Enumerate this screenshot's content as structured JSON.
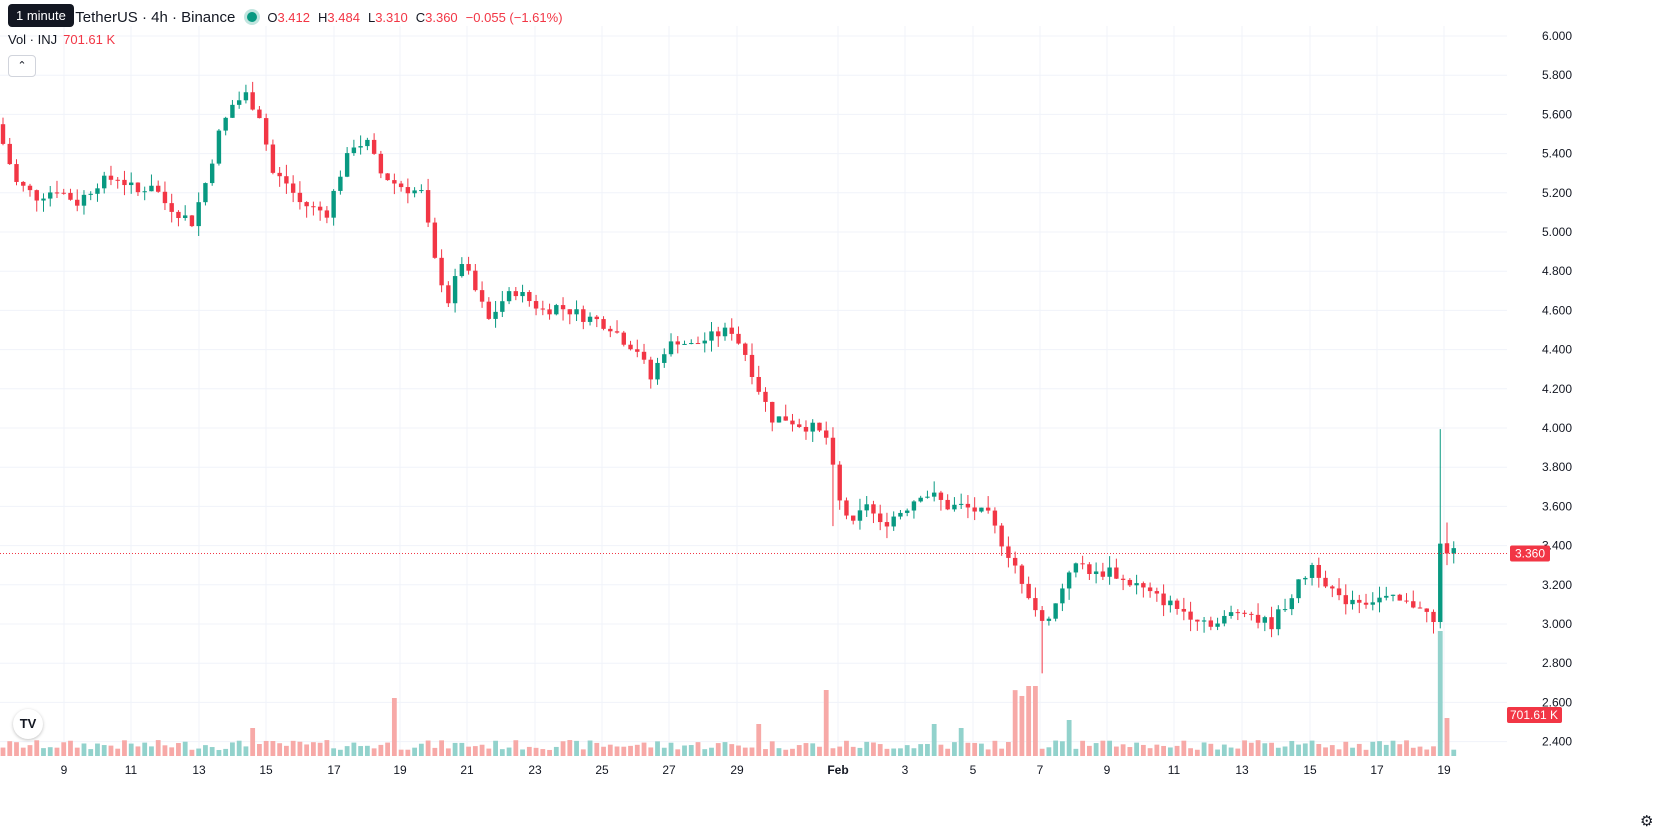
{
  "legend": {
    "symbol": "Injective / TetherUS · 4h · Binance",
    "o_label": "O",
    "o": "3.412",
    "h_label": "H",
    "h": "3.484",
    "l_label": "L",
    "l": "3.310",
    "c_label": "C",
    "c": "3.360",
    "change": "−0.055 (−1.61%)"
  },
  "tooltip": "1 minute",
  "volume_legend": {
    "label": "Vol · INJ",
    "value": "701.61 K"
  },
  "logo_text": "TV",
  "colors": {
    "up": "#089981",
    "down": "#f23645",
    "up_vol": "#92d2cc",
    "down_vol": "#f7a9a7",
    "grid": "#f0f3fa"
  },
  "chart_data": {
    "type": "candlestick",
    "interval": "4h",
    "x_tick_labels": [
      "9",
      "11",
      "13",
      "15",
      "17",
      "19",
      "21",
      "23",
      "25",
      "27",
      "29",
      "Feb",
      "3",
      "5",
      "7",
      "9",
      "11",
      "13",
      "15",
      "17",
      "19"
    ],
    "y_tick_labels": [
      "6.000",
      "5.800",
      "5.600",
      "5.400",
      "5.200",
      "5.000",
      "4.800",
      "4.600",
      "4.400",
      "4.200",
      "4.000",
      "3.800",
      "3.600",
      "3.400",
      "3.200",
      "3.000",
      "2.800",
      "2.600",
      "2.400"
    ],
    "ylim": [
      2.3,
      6.05
    ],
    "last_price": "3.360",
    "last_volume": "701.61 K",
    "grid": true,
    "price_path": [
      [
        0,
        5.55
      ],
      [
        3,
        5.25
      ],
      [
        6,
        5.18
      ],
      [
        9,
        5.22
      ],
      [
        12,
        5.15
      ],
      [
        15,
        5.25
      ],
      [
        18,
        5.28
      ],
      [
        21,
        5.2
      ],
      [
        23,
        5.25
      ],
      [
        25,
        5.15
      ],
      [
        27,
        5.1
      ],
      [
        29,
        5.05
      ],
      [
        31,
        5.25
      ],
      [
        33,
        5.5
      ],
      [
        35,
        5.65
      ],
      [
        37,
        5.7
      ],
      [
        39,
        5.6
      ],
      [
        41,
        5.3
      ],
      [
        43,
        5.25
      ],
      [
        45,
        5.15
      ],
      [
        47,
        5.12
      ],
      [
        49,
        5.1
      ],
      [
        51,
        5.3
      ],
      [
        53,
        5.45
      ],
      [
        55,
        5.45
      ],
      [
        57,
        5.3
      ],
      [
        59,
        5.25
      ],
      [
        61,
        5.22
      ],
      [
        63,
        5.2
      ],
      [
        65,
        4.85
      ],
      [
        67,
        4.65
      ],
      [
        69,
        4.85
      ],
      [
        71,
        4.7
      ],
      [
        73,
        4.55
      ],
      [
        75,
        4.65
      ],
      [
        77,
        4.7
      ],
      [
        79,
        4.65
      ],
      [
        81,
        4.6
      ],
      [
        83,
        4.62
      ],
      [
        85,
        4.6
      ],
      [
        87,
        4.57
      ],
      [
        89,
        4.55
      ],
      [
        91,
        4.52
      ],
      [
        93,
        4.45
      ],
      [
        95,
        4.4
      ],
      [
        97,
        4.25
      ],
      [
        99,
        4.4
      ],
      [
        101,
        4.45
      ],
      [
        103,
        4.42
      ],
      [
        105,
        4.45
      ],
      [
        107,
        4.48
      ],
      [
        109,
        4.5
      ],
      [
        111,
        4.38
      ],
      [
        113,
        4.2
      ],
      [
        115,
        4.05
      ],
      [
        117,
        4.05
      ],
      [
        119,
        4.02
      ],
      [
        121,
        4.0
      ],
      [
        123,
        3.95
      ],
      [
        125,
        3.62
      ],
      [
        127,
        3.5
      ],
      [
        129,
        3.62
      ],
      [
        131,
        3.5
      ],
      [
        133,
        3.55
      ],
      [
        135,
        3.6
      ],
      [
        137,
        3.67
      ],
      [
        139,
        3.65
      ],
      [
        141,
        3.6
      ],
      [
        143,
        3.6
      ],
      [
        145,
        3.58
      ],
      [
        147,
        3.55
      ],
      [
        149,
        3.42
      ],
      [
        151,
        3.3
      ],
      [
        153,
        3.15
      ],
      [
        155,
        3.0
      ],
      [
        157,
        3.1
      ],
      [
        159,
        3.28
      ],
      [
        161,
        3.3
      ],
      [
        163,
        3.25
      ],
      [
        165,
        3.28
      ],
      [
        167,
        3.22
      ],
      [
        169,
        3.2
      ],
      [
        171,
        3.15
      ],
      [
        173,
        3.12
      ],
      [
        175,
        3.08
      ],
      [
        177,
        3.05
      ],
      [
        179,
        3.02
      ],
      [
        181,
        3.0
      ],
      [
        183,
        3.05
      ],
      [
        185,
        3.08
      ],
      [
        187,
        3.02
      ],
      [
        189,
        3.0
      ],
      [
        191,
        3.1
      ],
      [
        193,
        3.2
      ],
      [
        195,
        3.3
      ],
      [
        197,
        3.22
      ],
      [
        199,
        3.12
      ],
      [
        201,
        3.13
      ],
      [
        203,
        3.12
      ],
      [
        205,
        3.13
      ],
      [
        207,
        3.12
      ],
      [
        209,
        3.1
      ],
      [
        211,
        3.1
      ],
      [
        213,
        3.0
      ],
      [
        214,
        3.41
      ],
      [
        215,
        3.36
      ]
    ]
  }
}
